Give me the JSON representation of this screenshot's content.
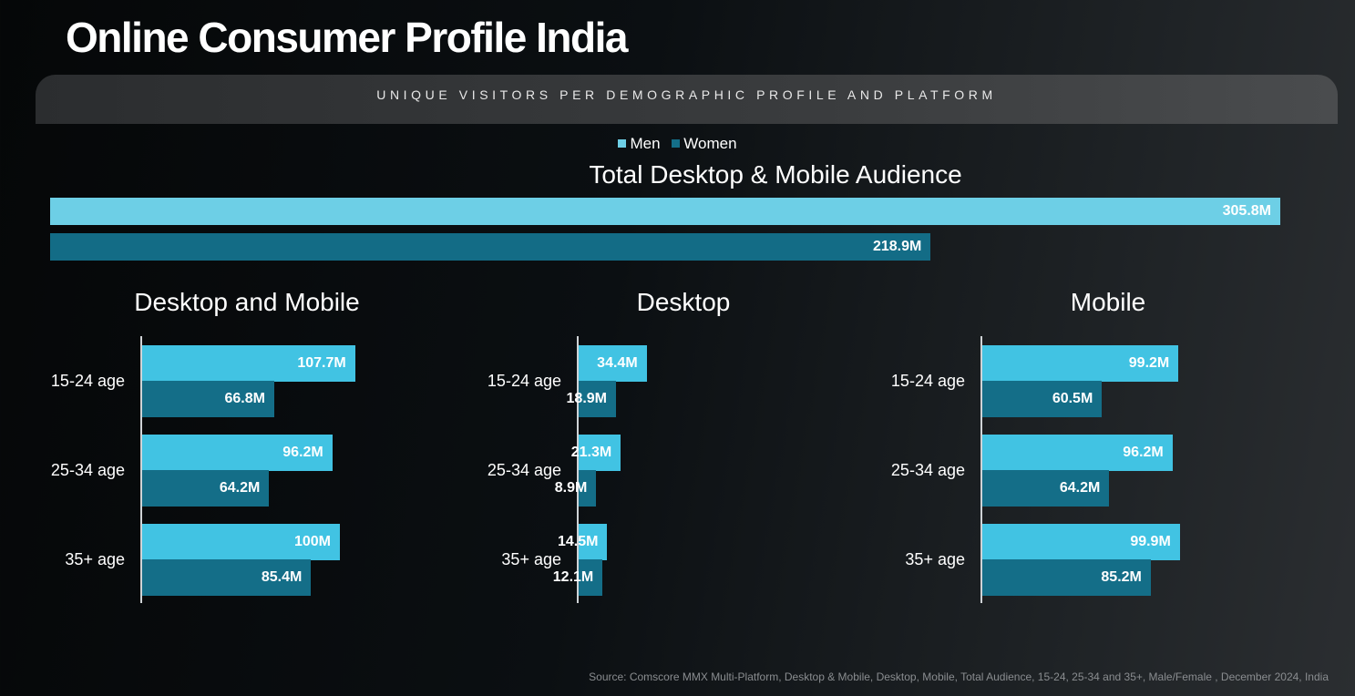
{
  "title": "Online Consumer Profile India",
  "subtitle": "UNIQUE VISITORS PER DEMOGRAPHIC PROFILE AND PLATFORM",
  "legend": [
    {
      "name": "Men",
      "color": "#6dcfe6"
    },
    {
      "name": "Women",
      "color": "#146e88"
    }
  ],
  "colors": {
    "men_total": "#6dcfe6",
    "women_total": "#136c86",
    "men_panel": "#41c3e3",
    "women_panel": "#146e88"
  },
  "source": "Source: Comscore MMX Multi-Platform, Desktop & Mobile, Desktop, Mobile, Total Audience, 15-24, 25-34 and 35+, Male/Female , December 2024, India",
  "chart_data": [
    {
      "type": "bar",
      "title": "Total Desktop & Mobile Audience",
      "orientation": "horizontal",
      "series": [
        {
          "name": "Men",
          "values": [
            305.8
          ],
          "labels": [
            "305.8M"
          ]
        },
        {
          "name": "Women",
          "values": [
            218.9
          ],
          "labels": [
            "218.9M"
          ]
        }
      ]
    },
    {
      "type": "bar",
      "title": "Desktop and Mobile",
      "orientation": "horizontal",
      "categories": [
        "15-24 age",
        "25-34 age",
        "35+ age"
      ],
      "series": [
        {
          "name": "Men",
          "values": [
            107.7,
            96.2,
            100
          ],
          "labels": [
            "107.7M",
            "96.2M",
            "100M"
          ]
        },
        {
          "name": "Women",
          "values": [
            66.8,
            64.2,
            85.4
          ],
          "labels": [
            "66.8M",
            "64.2M",
            "85.4M"
          ]
        }
      ]
    },
    {
      "type": "bar",
      "title": "Desktop",
      "orientation": "horizontal",
      "categories": [
        "15-24 age",
        "25-34 age",
        "35+ age"
      ],
      "series": [
        {
          "name": "Men",
          "values": [
            34.4,
            21.3,
            14.5
          ],
          "labels": [
            "34.4M",
            "21.3M",
            "14.5M"
          ]
        },
        {
          "name": "Women",
          "values": [
            18.9,
            8.9,
            12.1
          ],
          "labels": [
            "18.9M",
            "8.9M",
            "12.1M"
          ]
        }
      ]
    },
    {
      "type": "bar",
      "title": "Mobile",
      "orientation": "horizontal",
      "categories": [
        "15-24 age",
        "25-34 age",
        "35+ age"
      ],
      "series": [
        {
          "name": "Men",
          "values": [
            99.2,
            96.2,
            99.9
          ],
          "labels": [
            "99.2M",
            "96.2M",
            "99.9M"
          ]
        },
        {
          "name": "Women",
          "values": [
            60.5,
            64.2,
            85.2
          ],
          "labels": [
            "60.5M",
            "64.2M",
            "85.2M"
          ]
        }
      ]
    }
  ]
}
